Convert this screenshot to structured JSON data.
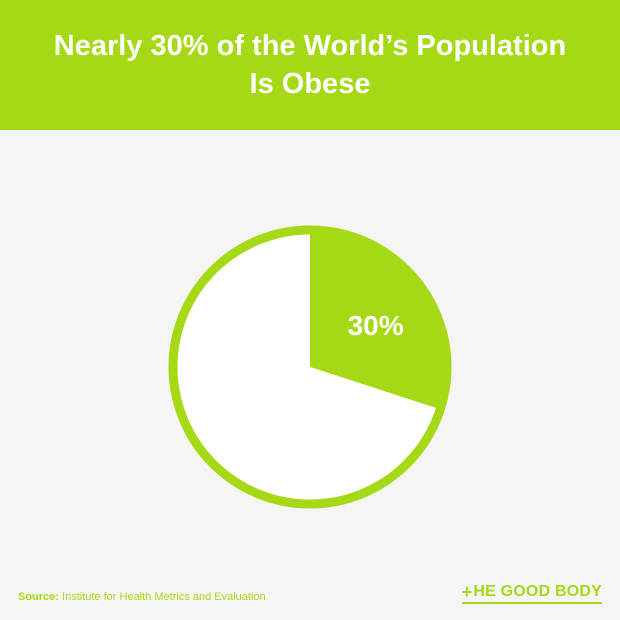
{
  "header": {
    "title": "Nearly 30% of the World’s Population Is Obese"
  },
  "chart_data": {
    "type": "pie",
    "title": "Nearly 30% of the World’s Population Is Obese",
    "slices": [
      {
        "label": "30%",
        "value": 30,
        "highlighted": true
      },
      {
        "label": "",
        "value": 70,
        "highlighted": false
      }
    ]
  },
  "footer": {
    "source_label": "Source:",
    "source_text": "Institute for Health Metrics and Evaluation",
    "brand_plus": "+",
    "brand_text": "HE GOOD BODY"
  },
  "colors": {
    "accent": "#a6d915",
    "background": "#f5f5f5",
    "white": "#ffffff"
  }
}
